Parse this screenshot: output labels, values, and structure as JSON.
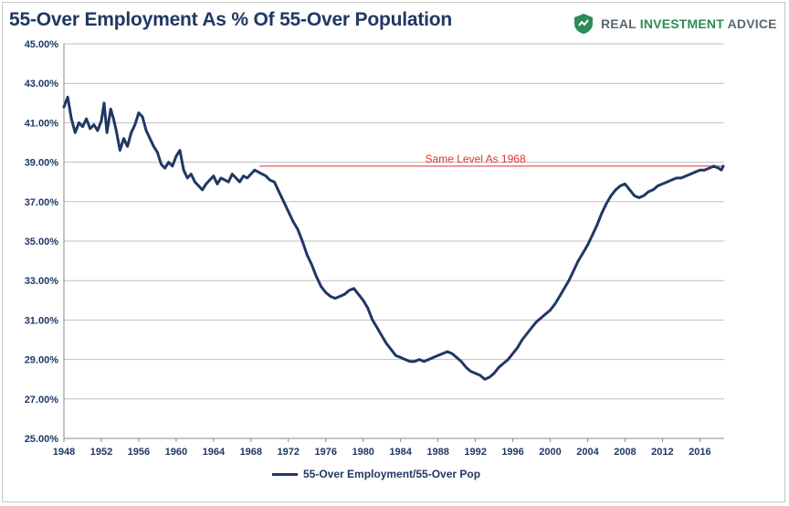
{
  "header": {
    "title": "55-Over Employment As % Of 55-Over Population",
    "brand_word1": "REAL",
    "brand_word2": "INVESTMENT",
    "brand_word3": "ADVICE",
    "brand_icon": "shield-logo-icon"
  },
  "colors": {
    "series": "#1f3864",
    "reference": "#e03030",
    "grid": "#bfbfbf",
    "brand_green": "#2e8b57",
    "brand_gray": "#5b6770"
  },
  "chart_data": {
    "type": "line",
    "title": "55-Over Employment As % Of 55-Over Population",
    "xlabel": "",
    "ylabel": "",
    "xlim": [
      1948,
      2018.6
    ],
    "ylim": [
      25,
      45
    ],
    "x_ticks": [
      "1948",
      "1952",
      "1956",
      "1960",
      "1964",
      "1968",
      "1972",
      "1976",
      "1980",
      "1984",
      "1988",
      "1992",
      "1996",
      "2000",
      "2004",
      "2008",
      "2012",
      "2016"
    ],
    "y_ticks": [
      "25.00%",
      "27.00%",
      "29.00%",
      "31.00%",
      "33.00%",
      "35.00%",
      "37.00%",
      "39.00%",
      "41.00%",
      "43.00%",
      "45.00%"
    ],
    "grid": true,
    "legend_position": "bottom",
    "series": [
      {
        "name": "55-Over Employment/55-Over Pop",
        "x": [
          1948.0,
          1948.4,
          1948.8,
          1949.2,
          1949.6,
          1950.0,
          1950.4,
          1950.8,
          1951.2,
          1951.6,
          1952.0,
          1952.3,
          1952.6,
          1953.0,
          1953.3,
          1953.6,
          1954.0,
          1954.4,
          1954.8,
          1955.2,
          1955.6,
          1956.0,
          1956.4,
          1956.8,
          1957.2,
          1957.6,
          1958.0,
          1958.4,
          1958.8,
          1959.2,
          1959.6,
          1960.0,
          1960.4,
          1960.8,
          1961.2,
          1961.6,
          1962.0,
          1962.4,
          1962.8,
          1963.2,
          1963.6,
          1964.0,
          1964.4,
          1964.8,
          1965.2,
          1965.6,
          1966.0,
          1966.4,
          1966.8,
          1967.2,
          1967.6,
          1968.0,
          1968.4,
          1968.8,
          1969.2,
          1969.6,
          1970.0,
          1970.5,
          1971.0,
          1971.5,
          1972.0,
          1972.5,
          1973.0,
          1973.5,
          1974.0,
          1974.5,
          1975.0,
          1975.5,
          1976.0,
          1976.5,
          1977.0,
          1977.5,
          1978.0,
          1978.5,
          1979.0,
          1979.5,
          1980.0,
          1980.5,
          1981.0,
          1981.5,
          1982.0,
          1982.5,
          1983.0,
          1983.5,
          1984.0,
          1984.5,
          1985.0,
          1985.5,
          1986.0,
          1986.5,
          1987.0,
          1987.5,
          1988.0,
          1988.5,
          1989.0,
          1989.5,
          1990.0,
          1990.5,
          1991.0,
          1991.5,
          1992.0,
          1992.5,
          1993.0,
          1993.5,
          1994.0,
          1994.5,
          1995.0,
          1995.5,
          1996.0,
          1996.5,
          1997.0,
          1997.5,
          1998.0,
          1998.5,
          1999.0,
          1999.5,
          2000.0,
          2000.5,
          2001.0,
          2001.5,
          2002.0,
          2002.5,
          2003.0,
          2003.5,
          2004.0,
          2004.5,
          2005.0,
          2005.5,
          2006.0,
          2006.5,
          2007.0,
          2007.5,
          2008.0,
          2008.5,
          2009.0,
          2009.5,
          2010.0,
          2010.5,
          2011.0,
          2011.5,
          2012.0,
          2012.5,
          2013.0,
          2013.5,
          2014.0,
          2014.5,
          2015.0,
          2015.5,
          2016.0,
          2016.5,
          2017.0,
          2017.5,
          2018.0,
          2018.3,
          2018.5
        ],
        "values": [
          41.8,
          42.3,
          41.2,
          40.5,
          41.0,
          40.8,
          41.2,
          40.7,
          40.9,
          40.6,
          41.1,
          42.0,
          40.5,
          41.7,
          41.2,
          40.6,
          39.6,
          40.2,
          39.8,
          40.5,
          40.9,
          41.5,
          41.3,
          40.6,
          40.2,
          39.8,
          39.5,
          38.9,
          38.7,
          39.0,
          38.8,
          39.3,
          39.6,
          38.6,
          38.2,
          38.4,
          38.0,
          37.8,
          37.6,
          37.9,
          38.1,
          38.3,
          37.9,
          38.2,
          38.1,
          38.0,
          38.4,
          38.2,
          38.0,
          38.3,
          38.2,
          38.4,
          38.6,
          38.5,
          38.4,
          38.3,
          38.1,
          38.0,
          37.5,
          37.0,
          36.5,
          36.0,
          35.6,
          35.0,
          34.3,
          33.8,
          33.2,
          32.7,
          32.4,
          32.2,
          32.1,
          32.2,
          32.3,
          32.5,
          32.6,
          32.3,
          32.0,
          31.6,
          31.0,
          30.6,
          30.2,
          29.8,
          29.5,
          29.2,
          29.1,
          29.0,
          28.9,
          28.9,
          29.0,
          28.9,
          29.0,
          29.1,
          29.2,
          29.3,
          29.4,
          29.3,
          29.1,
          28.9,
          28.6,
          28.4,
          28.3,
          28.2,
          28.0,
          28.1,
          28.3,
          28.6,
          28.8,
          29.0,
          29.3,
          29.6,
          30.0,
          30.3,
          30.6,
          30.9,
          31.1,
          31.3,
          31.5,
          31.8,
          32.2,
          32.6,
          33.0,
          33.5,
          34.0,
          34.4,
          34.8,
          35.3,
          35.8,
          36.4,
          36.9,
          37.3,
          37.6,
          37.8,
          37.9,
          37.6,
          37.3,
          37.2,
          37.3,
          37.5,
          37.6,
          37.8,
          37.9,
          38.0,
          38.1,
          38.2,
          38.2,
          38.3,
          38.4,
          38.5,
          38.6,
          38.6,
          38.7,
          38.8,
          38.7,
          38.6,
          38.8
        ]
      }
    ],
    "annotations": [
      {
        "label": "Same Level As 1968",
        "y": 38.8,
        "x_start": 1968.9,
        "x_end": 2018.6
      }
    ]
  },
  "legend": {
    "label": "55-Over Employment/55-Over Pop"
  }
}
